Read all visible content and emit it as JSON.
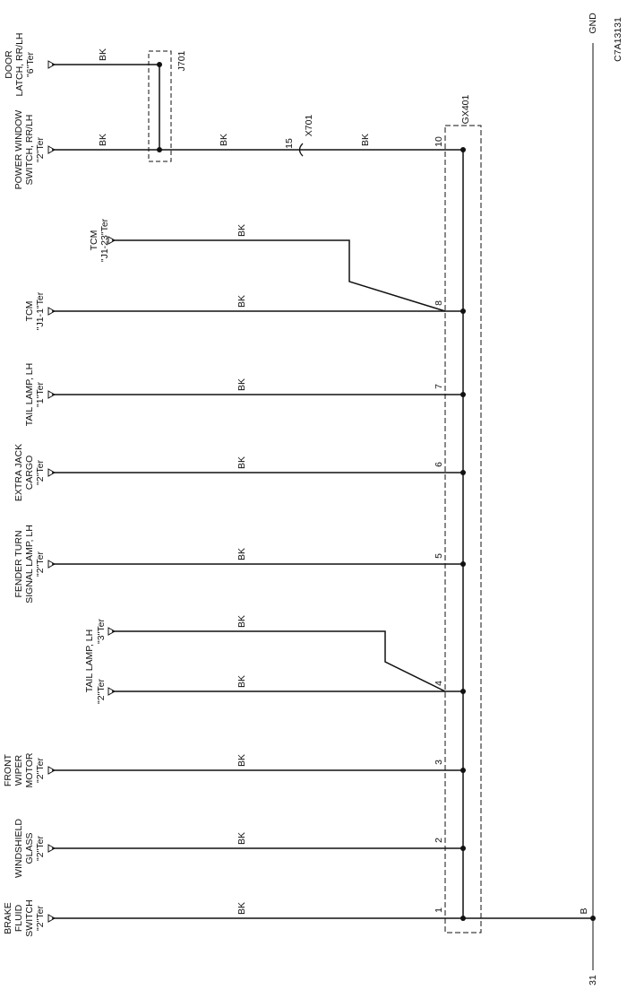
{
  "figure_id": "C7A13131",
  "ground_label": "GND",
  "ground_number": "31",
  "ground_wire": "B",
  "splice": "GX401",
  "connector_j": "J701",
  "connector_x": "X701",
  "connector_x_pin": "15",
  "components": [
    {
      "lines": [
        "DOOR",
        "LATCH, RR/LH"
      ],
      "terminal": "\"6\"Ter",
      "wires": [
        "BK"
      ]
    },
    {
      "lines": [
        "POWER WINDOW",
        "SWITCH, RR/LH"
      ],
      "terminal": "\"2\"Ter",
      "wires": [
        "BK",
        "BK",
        "BK"
      ],
      "pin": "10"
    },
    {
      "lines": [
        "TCM"
      ],
      "terminal": "\"J1-23\"Ter",
      "wires": [
        "BK"
      ]
    },
    {
      "lines": [
        "TCM"
      ],
      "terminal": "\"J1-1\"Ter",
      "wires": [
        "BK"
      ],
      "pin": "8"
    },
    {
      "lines": [
        "TAIL LAMP, LH"
      ],
      "terminal": "\"1\"Ter",
      "wires": [
        "BK"
      ],
      "pin": "7"
    },
    {
      "lines": [
        "EXTRA JACK",
        "CARGO"
      ],
      "terminal": "\"2\"Ter",
      "wires": [
        "BK"
      ],
      "pin": "6"
    },
    {
      "lines": [
        "FENDER TURN",
        "SIGNAL LAMP, LH"
      ],
      "terminal": "\"2\"Ter",
      "wires": [
        "BK"
      ],
      "pin": "5"
    },
    {
      "lines": [
        "TAIL LAMP, LH"
      ],
      "terminal": "\"3\"Ter",
      "wires": [
        "BK"
      ]
    },
    {
      "lines": [],
      "terminal": "\"2\"Ter",
      "wires": [
        "BK"
      ],
      "pin": "4"
    },
    {
      "lines": [
        "FRONT",
        "WIPER",
        "MOTOR"
      ],
      "terminal": "\"2\"Ter",
      "wires": [
        "BK"
      ],
      "pin": "3"
    },
    {
      "lines": [
        "WINDSHIELD",
        "GLASS"
      ],
      "terminal": "\"2\"Ter",
      "wires": [
        "BK"
      ],
      "pin": "2"
    },
    {
      "lines": [
        "BRAKE",
        "FLUID",
        "SWITCH"
      ],
      "terminal": "\"2\"Ter",
      "wires": [
        "BK"
      ],
      "pin": "1"
    }
  ]
}
